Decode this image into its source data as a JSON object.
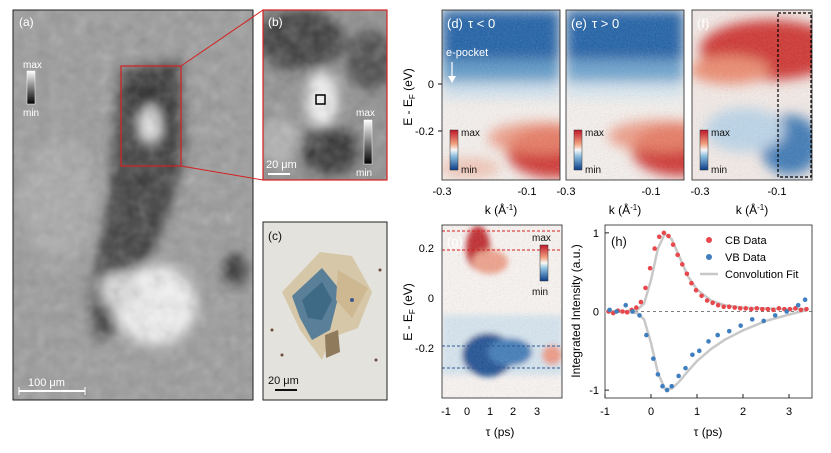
{
  "panels": {
    "a": {
      "tag": "(a)",
      "cbar_max": "max",
      "cbar_min": "min",
      "scalebar": "100 μm"
    },
    "b": {
      "tag": "(b)",
      "cbar_max": "max",
      "cbar_min": "min",
      "scalebar": "20 μm"
    },
    "c": {
      "tag": "(c)",
      "scalebar": "20 μm"
    },
    "d": {
      "tag": "(d)",
      "cond": "τ < 0",
      "annotation": "e-pocket",
      "cbar_max": "max",
      "cbar_min": "min"
    },
    "e": {
      "tag": "(e)",
      "cond": "τ > 0",
      "cbar_max": "max",
      "cbar_min": "min"
    },
    "f": {
      "tag": "(f)",
      "cbar_max": "max",
      "cbar_min": "min"
    },
    "g": {
      "tag": "(g)",
      "cbar_max": "max",
      "cbar_min": "min"
    },
    "h": {
      "tag": "(h)"
    }
  },
  "arpes_axes": {
    "ylabel": "E - E",
    "ylabel_sub": "F",
    "ylabel_tail": " (eV)",
    "yticks": [
      "0",
      "-0.2"
    ],
    "xlabel": "k (Å",
    "xlabel_sup": "-1",
    "xlabel_tail": ")",
    "xticks": [
      "-0.3",
      "-0.1"
    ]
  },
  "g_axes": {
    "yticks": [
      "0.2",
      "0",
      "-0.2"
    ],
    "xticks": [
      "-1",
      "0",
      "1",
      "2",
      "3"
    ],
    "xlabel": "τ (ps)"
  },
  "chart_data": {
    "type": "scatter",
    "title": "",
    "xlabel": "τ (ps)",
    "ylabel": "Integrated Intensity (a.u.)",
    "xlim": [
      -1,
      3.5
    ],
    "ylim": [
      -1.1,
      1.1
    ],
    "xticks": [
      "-1",
      "0",
      "1",
      "2",
      "3"
    ],
    "yticks": [
      "1",
      "0",
      "-1"
    ],
    "legend": [
      "CB Data",
      "VB Data",
      "Convolution Fit"
    ],
    "colors": {
      "cb": "#e8474b",
      "vb": "#3f7fbf",
      "fit": "#c8c8c8"
    },
    "series": [
      {
        "name": "CB Data",
        "x": [
          -0.92,
          -0.82,
          -0.72,
          -0.62,
          -0.52,
          -0.42,
          -0.32,
          -0.22,
          -0.12,
          -0.02,
          0.08,
          0.18,
          0.28,
          0.38,
          0.48,
          0.58,
          0.68,
          0.78,
          0.88,
          0.98,
          1.1,
          1.22,
          1.34,
          1.46,
          1.58,
          1.7,
          1.82,
          1.94,
          2.06,
          2.18,
          2.3,
          2.42,
          2.54,
          2.66,
          2.78,
          2.9,
          3.02,
          3.14,
          3.26,
          3.38
        ],
        "y": [
          0.0,
          -0.02,
          0.01,
          0.0,
          -0.01,
          0.02,
          0.05,
          0.12,
          0.3,
          0.55,
          0.8,
          0.95,
          1.0,
          0.96,
          0.85,
          0.72,
          0.6,
          0.48,
          0.36,
          0.27,
          0.2,
          0.14,
          0.11,
          0.08,
          0.06,
          0.06,
          0.05,
          0.04,
          0.04,
          0.03,
          0.04,
          0.03,
          0.03,
          0.02,
          0.04,
          0.03,
          0.03,
          0.04,
          0.02,
          0.03
        ]
      },
      {
        "name": "VB Data",
        "x": [
          -0.9,
          -0.75,
          -0.55,
          -0.4,
          -0.25,
          -0.1,
          0.05,
          0.15,
          0.25,
          0.35,
          0.45,
          0.6,
          0.75,
          0.9,
          1.05,
          1.25,
          1.45,
          1.7,
          1.95,
          2.2,
          2.45,
          2.7,
          2.95,
          3.2,
          3.35
        ],
        "y": [
          0.02,
          0.0,
          0.08,
          0.0,
          -0.05,
          -0.3,
          -0.6,
          -0.8,
          -0.95,
          -1.0,
          -0.95,
          -0.82,
          -0.72,
          -0.55,
          -0.5,
          -0.38,
          -0.3,
          -0.25,
          -0.18,
          -0.1,
          -0.12,
          -0.05,
          0.0,
          0.08,
          0.15
        ]
      },
      {
        "name": "Convolution Fit",
        "x": [
          -1.0,
          -0.6,
          -0.3,
          -0.15,
          0.0,
          0.15,
          0.3,
          0.45,
          0.6,
          0.8,
          1.0,
          1.3,
          1.6,
          2.0,
          2.5,
          3.0,
          3.4
        ],
        "y_cb": [
          0.0,
          0.0,
          0.02,
          0.1,
          0.4,
          0.8,
          0.99,
          0.92,
          0.72,
          0.45,
          0.28,
          0.14,
          0.08,
          0.05,
          0.04,
          0.03,
          0.03
        ],
        "y_vb": [
          0.0,
          0.0,
          -0.02,
          -0.1,
          -0.4,
          -0.78,
          -0.98,
          -0.98,
          -0.9,
          -0.76,
          -0.63,
          -0.48,
          -0.36,
          -0.24,
          -0.12,
          -0.04,
          0.02
        ]
      }
    ]
  }
}
